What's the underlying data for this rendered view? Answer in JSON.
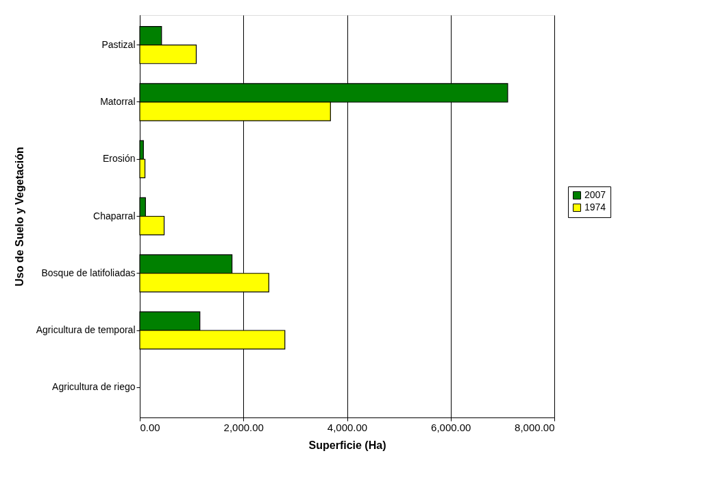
{
  "chart_data": {
    "type": "bar",
    "orientation": "horizontal",
    "xlabel": "Superficie (Ha)",
    "ylabel": "Uso de Suelo y Vegetación",
    "categories": [
      "Pastizal",
      "Matorral",
      "Erosión",
      "Chaparral",
      "Bosque de latifoliadas",
      "Agricultura de temporal",
      "Agricultura de riego"
    ],
    "series": [
      {
        "name": "2007",
        "color": "#008000",
        "values": [
          420,
          7100,
          70,
          110,
          1780,
          1160,
          null
        ]
      },
      {
        "name": "1974",
        "color": "#ffff00",
        "values": [
          1090,
          3680,
          100,
          470,
          2490,
          2800,
          null
        ]
      }
    ],
    "xlim": [
      0,
      8000
    ],
    "xticks": [
      {
        "value": 0,
        "label": "0.00"
      },
      {
        "value": 2000,
        "label": "2,000.00"
      },
      {
        "value": 4000,
        "label": "4,000.00"
      },
      {
        "value": 6000,
        "label": "6,000.00"
      },
      {
        "value": 8000,
        "label": "8,000.00"
      }
    ],
    "grid": "x",
    "legend": "right"
  }
}
